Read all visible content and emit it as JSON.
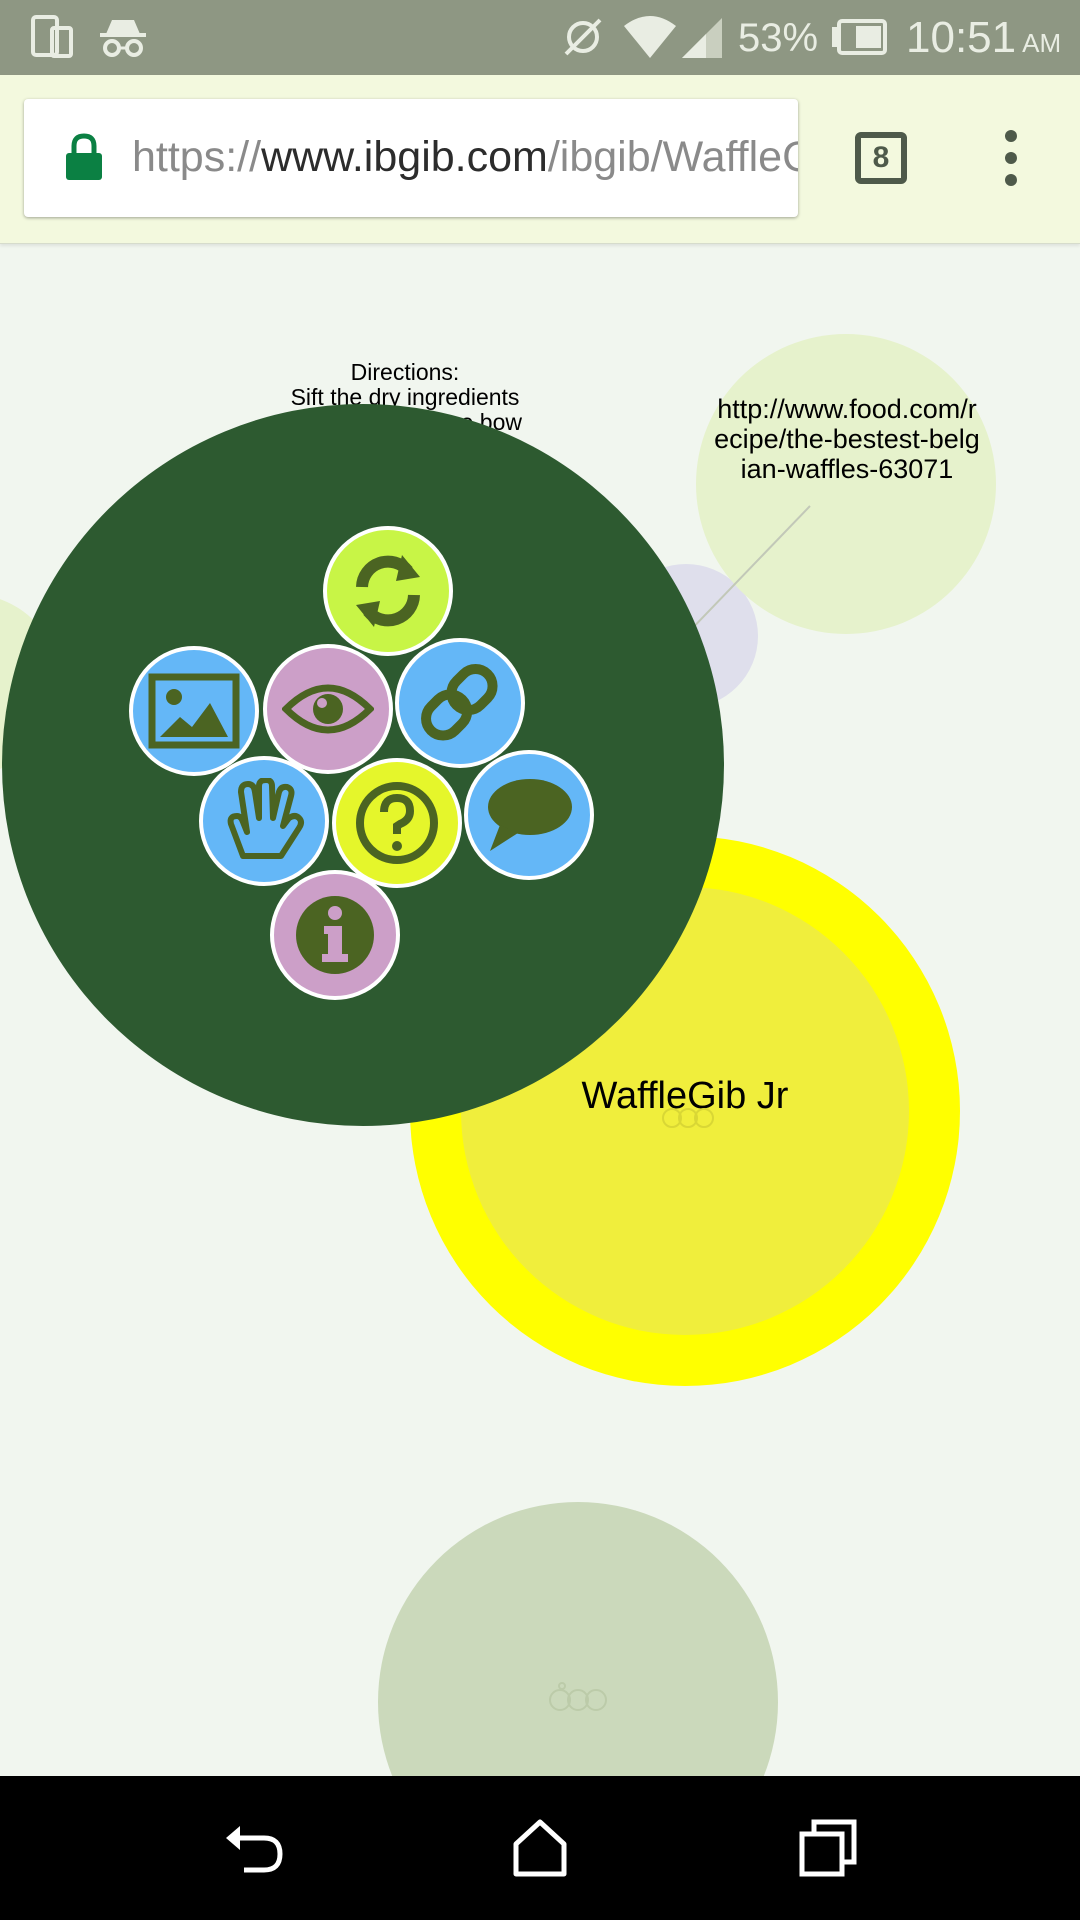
{
  "status_bar": {
    "battery_percent": "53%",
    "time": "10:51",
    "ampm": "AM",
    "icons": [
      "screen-rotate-icon",
      "incognito-icon",
      "sync-off-icon",
      "wifi-icon",
      "signal-icon",
      "battery-icon"
    ]
  },
  "browser": {
    "url_scheme": "https://",
    "url_host": "www.ibgib.com",
    "url_path": "/ibgib/WaffleGib",
    "tab_count": "8"
  },
  "canvas": {
    "directions_line1": "Directions:",
    "directions_line2": "Sift the dry ingredients",
    "directions_line3": "together in a large bow",
    "link_text": "http://www.food.com/recipe/the-bestest-belgian-waffles-63071",
    "waffle_label": "WaffleGib Jr",
    "colors": {
      "menu_bubble": "#2d5a30",
      "yellow_ring": "#ffff00",
      "yellow_fill": "#f0ee3c",
      "link_bubble": "#e6f2cc",
      "bottom_bubble": "#cbd9bb",
      "lavender_bubble": "#dfdfec",
      "action_blue": "#64b7f7",
      "action_pink": "#cc9fc8",
      "action_lime": "#c8f546",
      "action_yellow": "#e5f62b",
      "action_icon": "#4b6422"
    },
    "actions": [
      {
        "name": "refresh",
        "icon": "refresh-icon"
      },
      {
        "name": "image",
        "icon": "image-icon"
      },
      {
        "name": "view",
        "icon": "eye-icon"
      },
      {
        "name": "link",
        "icon": "link-icon"
      },
      {
        "name": "hand",
        "icon": "hand-icon"
      },
      {
        "name": "help",
        "icon": "question-icon"
      },
      {
        "name": "comment",
        "icon": "comment-icon"
      },
      {
        "name": "info",
        "icon": "info-icon"
      }
    ]
  },
  "nav_bar": {
    "icons": [
      "back-icon",
      "home-icon",
      "recents-icon"
    ]
  }
}
